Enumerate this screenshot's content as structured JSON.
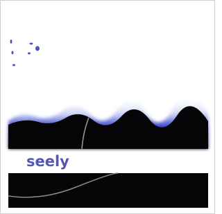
{
  "cover": {
    "text": "seely"
  }
}
